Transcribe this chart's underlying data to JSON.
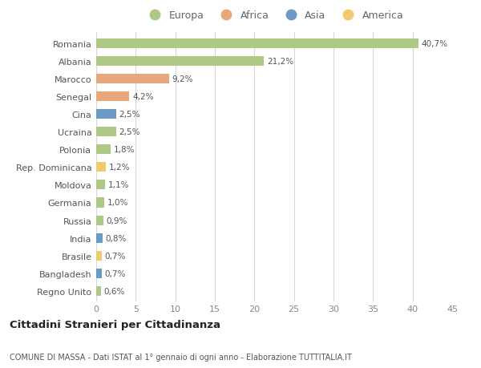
{
  "countries": [
    "Romania",
    "Albania",
    "Marocco",
    "Senegal",
    "Cina",
    "Ucraina",
    "Polonia",
    "Rep. Dominicana",
    "Moldova",
    "Germania",
    "Russia",
    "India",
    "Brasile",
    "Bangladesh",
    "Regno Unito"
  ],
  "values": [
    40.7,
    21.2,
    9.2,
    4.2,
    2.5,
    2.5,
    1.8,
    1.2,
    1.1,
    1.0,
    0.9,
    0.8,
    0.7,
    0.7,
    0.6
  ],
  "labels": [
    "40,7%",
    "21,2%",
    "9,2%",
    "4,2%",
    "2,5%",
    "2,5%",
    "1,8%",
    "1,2%",
    "1,1%",
    "1,0%",
    "0,9%",
    "0,8%",
    "0,7%",
    "0,7%",
    "0,6%"
  ],
  "continents": [
    "Europa",
    "Europa",
    "Africa",
    "Africa",
    "Asia",
    "Europa",
    "Europa",
    "America",
    "Europa",
    "Europa",
    "Europa",
    "Asia",
    "America",
    "Asia",
    "Europa"
  ],
  "colors": {
    "Europa": "#aec986",
    "Africa": "#e8a87c",
    "Asia": "#6b9bc4",
    "America": "#f2c96e"
  },
  "title": "Cittadini Stranieri per Cittadinanza",
  "subtitle": "COMUNE DI MASSA - Dati ISTAT al 1° gennaio di ogni anno - Elaborazione TUTTITALIA.IT",
  "xlim": [
    0,
    45
  ],
  "xticks": [
    0,
    5,
    10,
    15,
    20,
    25,
    30,
    35,
    40,
    45
  ],
  "background_color": "#ffffff",
  "grid_color": "#d8d8d8",
  "bar_height": 0.55,
  "legend_order": [
    "Europa",
    "Africa",
    "Asia",
    "America"
  ]
}
